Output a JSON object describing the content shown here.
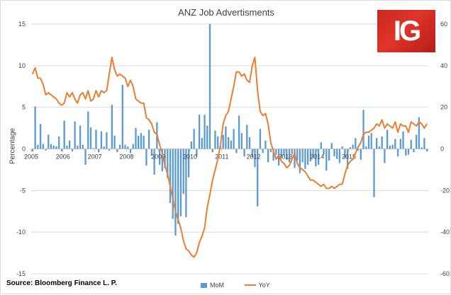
{
  "logo_text": "IG",
  "source": "Source: Bloomberg Finance L. P.",
  "colors": {
    "mom": "#5b9bd5",
    "yoy": "#ed7d31",
    "grid": "#d9d9d9",
    "axis": "#bfbfbf"
  },
  "chart_data": {
    "type": "bar",
    "title": "ANZ Job Advertisments",
    "xlabel": "",
    "ylabel": "Percentage",
    "y_left_range": [
      -15,
      15
    ],
    "y_left_ticks": [
      15,
      10,
      5,
      0,
      -5,
      -10,
      -15
    ],
    "y_right_range": [
      -60,
      60
    ],
    "y_right_ticks": [
      60,
      40,
      20,
      0,
      -20,
      -40,
      -60
    ],
    "year_labels": [
      "2005",
      "2006",
      "2007",
      "2008",
      "2009",
      "2010",
      "2011",
      "2012",
      "2013",
      "2014",
      "2015"
    ],
    "grid": true,
    "legend_position": "bottom",
    "series": [
      {
        "name": "MoM",
        "type": "bar",
        "axis": "left",
        "start": "2005-01",
        "frequency": "monthly",
        "values": [
          -0.3,
          5.1,
          0.5,
          3.0,
          0.6,
          -0.2,
          1.7,
          0.6,
          0.4,
          0.3,
          1.5,
          -0.3,
          3.4,
          0.4,
          1.0,
          -0.3,
          3.3,
          0.4,
          2.8,
          0.5,
          -1.9,
          4.5,
          2.6,
          0.1,
          2.3,
          -0.4,
          2.1,
          0.3,
          2.0,
          -0.2,
          5.3,
          1.6,
          -0.4,
          0.5,
          7.7,
          0.5,
          0.3,
          -0.5,
          0.6,
          2.5,
          1.6,
          1.9,
          1.6,
          -2.0,
          2.3,
          -0.8,
          -3.1,
          3.2,
          -1.9,
          -2.7,
          -2.3,
          -3.5,
          -6.5,
          -8.4,
          -10.4,
          -9.0,
          -8.1,
          -5.4,
          -8.2,
          -3.4,
          0.9,
          2.4,
          -0.9,
          4.1,
          1.3,
          4.1,
          2.8,
          15.0,
          -0.4,
          2.2,
          1.5,
          0.3,
          1.7,
          2.7,
          1.4,
          1.0,
          2.4,
          -0.5,
          4.0,
          1.9,
          -0.9,
          2.9,
          1.4,
          -1.0,
          -2.2,
          -6.9,
          2.4,
          -0.5,
          1.0,
          -1.6,
          -0.4,
          -1.4,
          -0.7,
          -2.0,
          -1.1,
          -0.8,
          -1.3,
          -1.6,
          -0.6,
          -2.3,
          -1.4,
          -2.9,
          -1.6,
          -2.4,
          -1.9,
          -1.5,
          -1.1,
          -2.1,
          -1.9,
          0.8,
          -0.7,
          -2.6,
          -1.4,
          0.7,
          -0.9,
          -1.2,
          -1.7,
          0.3,
          -1.1,
          -2.4,
          0.2,
          0.5,
          1.3,
          -0.2,
          -1.3,
          4.7,
          0.3,
          1.6,
          1.9,
          -5.8,
          1.3,
          0.3,
          1.5,
          -1.7,
          2.3,
          0.4,
          0.5,
          1.2,
          -0.9,
          1.2,
          2.1,
          -0.8,
          -0.7,
          1.1,
          -0.4,
          1.7,
          3.8,
          0.2,
          1.3,
          -0.3
        ]
      },
      {
        "name": "YoY",
        "type": "line",
        "axis": "right",
        "start": "2005-01",
        "frequency": "monthly",
        "values": [
          36,
          39,
          34,
          34,
          31,
          26,
          27,
          26,
          25,
          24,
          22,
          21,
          22,
          27,
          25,
          27,
          24,
          22,
          26,
          27,
          24,
          28,
          23,
          24,
          28,
          25,
          28,
          27,
          28,
          36,
          44,
          38,
          35,
          36,
          35,
          34,
          30,
          33,
          30,
          24,
          23,
          22,
          22,
          15,
          14,
          12,
          8,
          7,
          2,
          -2,
          -8,
          -12,
          -18,
          -24,
          -30,
          -34,
          -38,
          -44,
          -48,
          -49,
          -51,
          -52,
          -50,
          -45,
          -42,
          -38,
          -28,
          -22,
          -15,
          -10,
          -5,
          2,
          12,
          16,
          18,
          24,
          30,
          37,
          37,
          35,
          36,
          33,
          32,
          40,
          44,
          28,
          18,
          16,
          17,
          12,
          3,
          -1,
          -5,
          -3,
          -6,
          -7,
          -9,
          -8,
          -5,
          -2,
          -7,
          -9,
          -10,
          -11,
          -13,
          -15,
          -15,
          -16,
          -17,
          -18,
          -17,
          -19,
          -19,
          -18,
          -19,
          -18,
          -17,
          -17,
          -12,
          -8,
          -6,
          -5,
          -2,
          1,
          3,
          7,
          8,
          8,
          9,
          10,
          12,
          11,
          14,
          10,
          12,
          11,
          10,
          13,
          8,
          12,
          11,
          11,
          8,
          13,
          12,
          11,
          13,
          12,
          10,
          12
        ]
      }
    ]
  }
}
